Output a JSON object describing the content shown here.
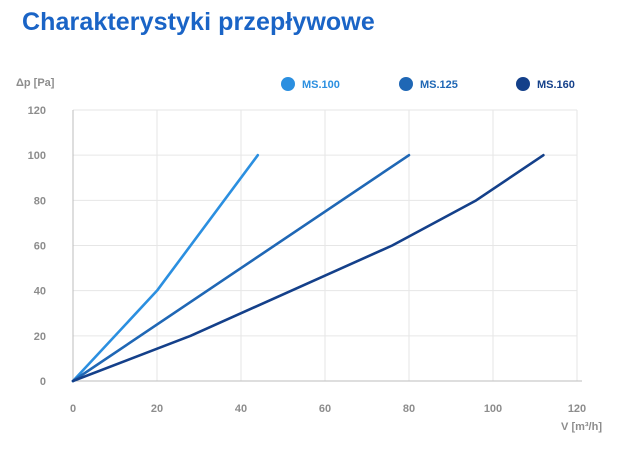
{
  "title": "Charakterystyki przepływowe",
  "chart_data": {
    "type": "line",
    "ylabel": "Δp [Pa]",
    "xlabel": "V [m³/h]",
    "xlim": [
      0,
      120
    ],
    "ylim": [
      0,
      120
    ],
    "x_ticks": [
      0,
      20,
      40,
      60,
      80,
      100,
      120
    ],
    "y_ticks": [
      0,
      20,
      40,
      60,
      80,
      100,
      120
    ],
    "grid": true,
    "legend_position": "top",
    "series": [
      {
        "name": "MS.100",
        "color": "#2b8fe0",
        "points": [
          [
            0,
            0
          ],
          [
            20,
            40
          ],
          [
            44,
            100
          ]
        ]
      },
      {
        "name": "MS.125",
        "color": "#1f67b5",
        "points": [
          [
            0,
            0
          ],
          [
            40,
            50
          ],
          [
            80,
            100
          ]
        ]
      },
      {
        "name": "MS.160",
        "color": "#14408a",
        "points": [
          [
            0,
            0
          ],
          [
            28,
            20
          ],
          [
            76,
            60
          ],
          [
            96,
            80
          ],
          [
            112,
            100
          ]
        ]
      }
    ]
  }
}
